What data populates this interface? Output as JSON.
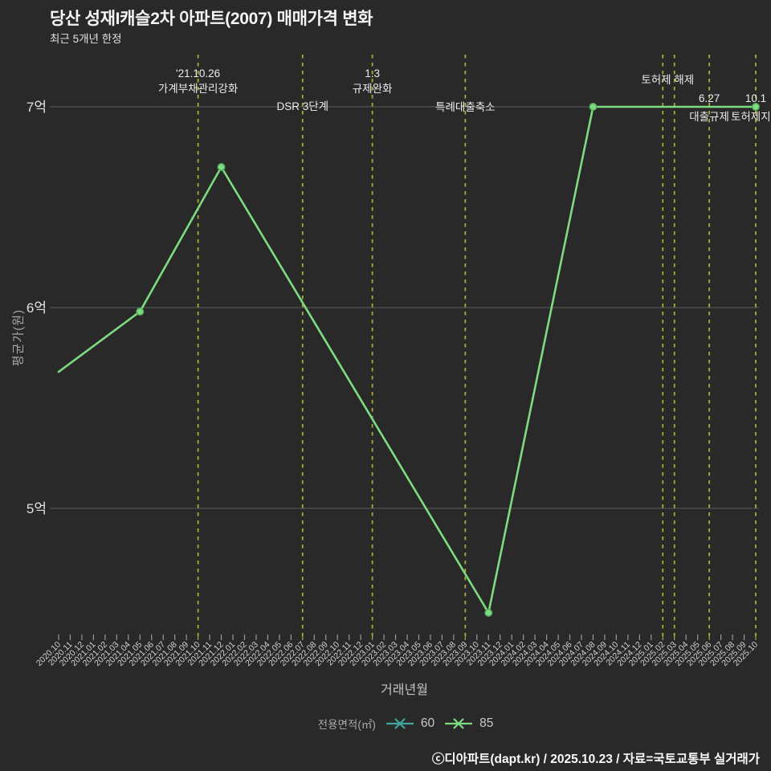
{
  "footer": {
    "text": "ⓒ디아파트(dapt.kr) / 2025.10.23 / 자료=국토교통부 실거래가"
  },
  "chart_data": {
    "type": "line",
    "title": "당산 성재I캐슬2차 아파트(2007) 매매가격 변화",
    "subtitle": "최근 5개년 한정",
    "xlabel": "거래년월",
    "ylabel": "평균가(원)",
    "legend_title": "전용면적(㎡)",
    "legend_position": "bottom-center",
    "grid": "horizontal-only",
    "ylim": [
      4.37,
      7.27
    ],
    "y_unit": "억",
    "y_ticks": [
      {
        "label": "5억",
        "value": 5
      },
      {
        "label": "6억",
        "value": 6
      },
      {
        "label": "7억",
        "value": 7
      }
    ],
    "x_months": [
      "2020.10",
      "2020.11",
      "2020.12",
      "2021.01",
      "2021.02",
      "2021.03",
      "2021.04",
      "2021.05",
      "2021.06",
      "2021.07",
      "2021.08",
      "2021.09",
      "2021.10",
      "2021.11",
      "2021.12",
      "2022.01",
      "2022.02",
      "2022.03",
      "2022.04",
      "2022.05",
      "2022.06",
      "2022.07",
      "2022.08",
      "2022.09",
      "2022.10",
      "2022.11",
      "2022.12",
      "2023.01",
      "2023.02",
      "2023.03",
      "2023.04",
      "2023.05",
      "2023.06",
      "2023.07",
      "2023.08",
      "2023.09",
      "2023.10",
      "2023.11",
      "2023.12",
      "2024.01",
      "2024.02",
      "2024.03",
      "2024.04",
      "2024.05",
      "2024.06",
      "2024.07",
      "2024.08",
      "2024.09",
      "2024.10",
      "2024.11",
      "2024.12",
      "2025.01",
      "2025.02",
      "2025.03",
      "2025.04",
      "2025.05",
      "2025.06",
      "2025.07",
      "2025.08",
      "2025.09",
      "2025.10"
    ],
    "series": [
      {
        "name": "60",
        "color": "#42a59e",
        "points": []
      },
      {
        "name": "85",
        "color": "#7edc80",
        "marker_edge": "#55a858",
        "points": [
          {
            "x": "2020.10",
            "y": 5.68,
            "marker": false
          },
          {
            "x": "2021.05",
            "y": 5.98
          },
          {
            "x": "2021.12",
            "y": 6.7
          },
          {
            "x": "2023.11",
            "y": 4.48
          },
          {
            "x": "2024.08",
            "y": 7.0
          },
          {
            "x": "2025.10",
            "y": 7.0
          }
        ]
      }
    ],
    "events": [
      {
        "month": "2021.10",
        "lines": [
          "'21.10.26",
          "가계부채관리강화"
        ],
        "y": 96,
        "lh": 19
      },
      {
        "month": "2022.07",
        "lines": [
          "DSR 3단계"
        ],
        "y": 137
      },
      {
        "month": "2023.01",
        "lines": [
          "1.3",
          "규제완화"
        ],
        "y": 96,
        "lh": 19
      },
      {
        "month": "2023.09",
        "lines": [
          "특례대출축소"
        ],
        "y": 138
      },
      {
        "month": "2025.02",
        "lines": [
          "토허제 해제"
        ],
        "y": 104,
        "dx": 6
      },
      {
        "month": "2025.03",
        "lines": []
      },
      {
        "month": "2025.06",
        "lines": [
          "6.27",
          "대출규제"
        ],
        "y": 127,
        "lh": 23
      },
      {
        "month": "2025.10",
        "lines": [
          "10.1",
          "토허제지정"
        ],
        "y": 127,
        "lh": 23
      }
    ],
    "colors": {
      "background": "#292929",
      "grid": "#5c5c5c",
      "event_line": "#a9ad35",
      "tick": "#999999",
      "x_tick_label": "#d2d2d2",
      "y_tick_label": "#e2e2e2",
      "annotation": "#ececec"
    }
  }
}
